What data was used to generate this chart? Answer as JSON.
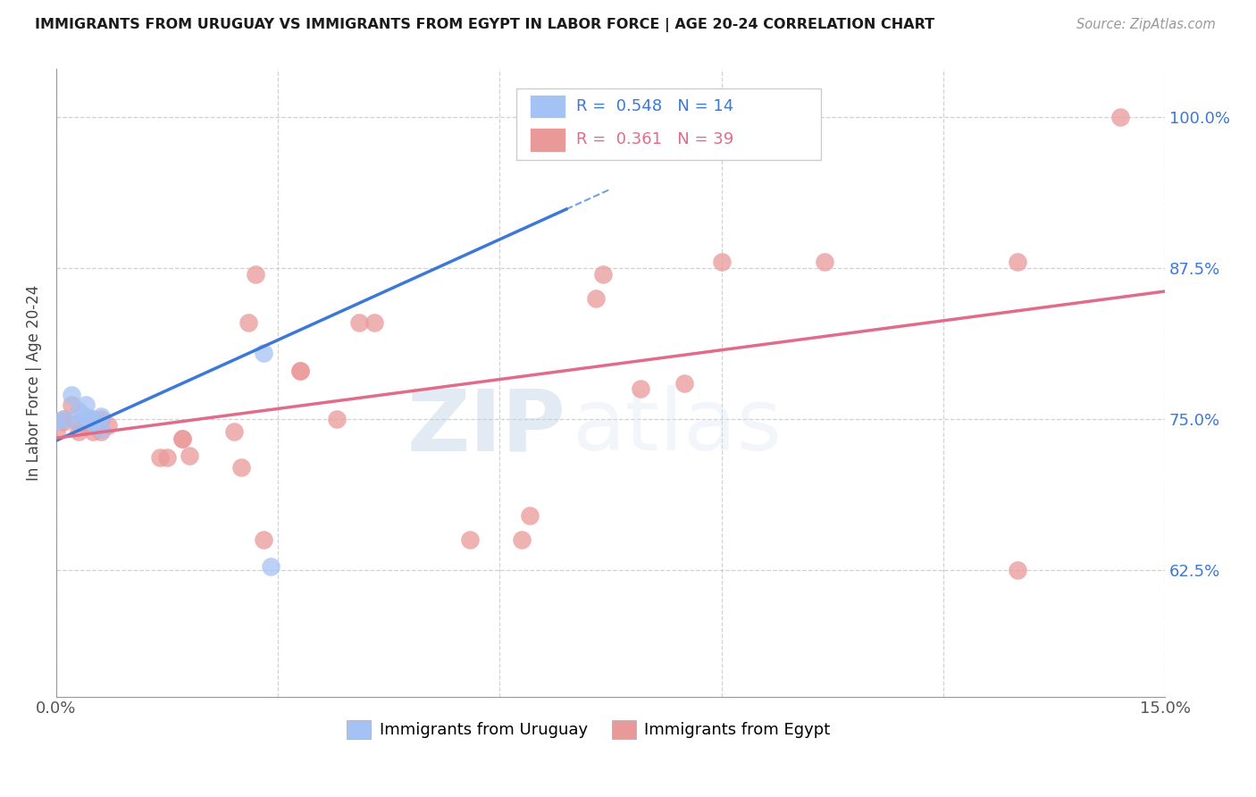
{
  "title": "IMMIGRANTS FROM URUGUAY VS IMMIGRANTS FROM EGYPT IN LABOR FORCE | AGE 20-24 CORRELATION CHART",
  "source": "Source: ZipAtlas.com",
  "ylabel_label": "In Labor Force | Age 20-24",
  "xlim": [
    0.0,
    0.15
  ],
  "ylim": [
    0.52,
    1.04
  ],
  "uruguay_R": 0.548,
  "uruguay_N": 14,
  "egypt_R": 0.361,
  "egypt_N": 39,
  "uruguay_color": "#a4c2f4",
  "egypt_color": "#ea9999",
  "uruguay_line_color": "#3c78d8",
  "egypt_line_color": "#e06c8a",
  "background_color": "#ffffff",
  "grid_color": "#cccccc",
  "watermark_zip": "ZIP",
  "watermark_atlas": "atlas",
  "uruguay_x": [
    0.0,
    0.001,
    0.002,
    0.003,
    0.003,
    0.004,
    0.004,
    0.005,
    0.005,
    0.006,
    0.006,
    0.028,
    0.029,
    0.069
  ],
  "uruguay_y": [
    0.748,
    0.75,
    0.77,
    0.757,
    0.748,
    0.762,
    0.752,
    0.749,
    0.747,
    0.752,
    0.742,
    0.805,
    0.628,
    1.0
  ],
  "egypt_x": [
    0.0,
    0.001,
    0.001,
    0.002,
    0.003,
    0.003,
    0.004,
    0.005,
    0.005,
    0.006,
    0.006,
    0.007,
    0.014,
    0.015,
    0.017,
    0.017,
    0.018,
    0.024,
    0.025,
    0.026,
    0.027,
    0.028,
    0.033,
    0.033,
    0.038,
    0.041,
    0.043,
    0.056,
    0.063,
    0.064,
    0.073,
    0.074,
    0.079,
    0.085,
    0.09,
    0.104,
    0.13,
    0.13,
    0.144
  ],
  "egypt_y": [
    0.74,
    0.75,
    0.748,
    0.762,
    0.747,
    0.74,
    0.745,
    0.75,
    0.74,
    0.75,
    0.74,
    0.745,
    0.718,
    0.718,
    0.734,
    0.734,
    0.72,
    0.74,
    0.71,
    0.83,
    0.87,
    0.65,
    0.79,
    0.79,
    0.75,
    0.83,
    0.83,
    0.65,
    0.65,
    0.67,
    0.85,
    0.87,
    0.775,
    0.78,
    0.88,
    0.88,
    0.88,
    0.625,
    1.0
  ],
  "yticks": [
    0.625,
    0.75,
    0.875,
    1.0
  ],
  "ytick_labels": [
    "62.5%",
    "75.0%",
    "87.5%",
    "100.0%"
  ]
}
